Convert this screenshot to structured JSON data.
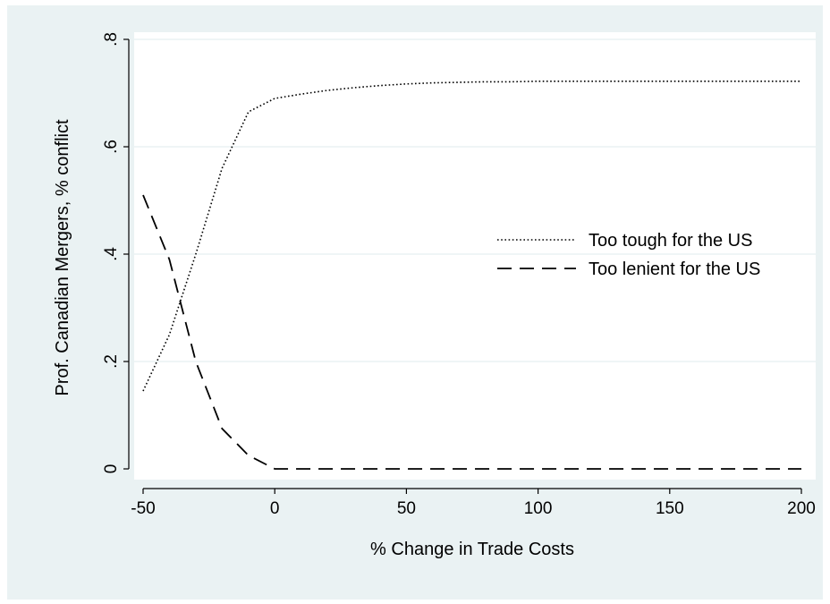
{
  "chart_data": {
    "type": "line",
    "xlabel": "% Change in Trade Costs",
    "ylabel": "Prof. Canadian Mergers, % conflict",
    "xlim": [
      -50,
      200
    ],
    "ylim": [
      0,
      0.8
    ],
    "x_ticks": [
      -50,
      0,
      50,
      100,
      150,
      200
    ],
    "x_tick_labels": [
      "-50",
      "0",
      "50",
      "100",
      "150",
      "200"
    ],
    "y_ticks": [
      0,
      0.2,
      0.4,
      0.6,
      0.8
    ],
    "y_tick_labels": [
      "0",
      ".2",
      ".4",
      ".6",
      ".8"
    ],
    "grid": true,
    "legend_position": "center-right",
    "x": [
      -50,
      -40,
      -30,
      -20,
      -10,
      0,
      10,
      20,
      30,
      40,
      50,
      60,
      70,
      80,
      90,
      100,
      110,
      120,
      130,
      140,
      150,
      160,
      170,
      180,
      190,
      200
    ],
    "series": [
      {
        "name": "Too tough for the US",
        "style": "dotted",
        "values": [
          0.145,
          0.25,
          0.4,
          0.56,
          0.665,
          0.69,
          0.698,
          0.705,
          0.71,
          0.714,
          0.717,
          0.719,
          0.72,
          0.721,
          0.721,
          0.722,
          0.722,
          0.722,
          0.722,
          0.722,
          0.722,
          0.722,
          0.722,
          0.722,
          0.722,
          0.722
        ]
      },
      {
        "name": "Too lenient for the US",
        "style": "dashed",
        "values": [
          0.51,
          0.39,
          0.2,
          0.075,
          0.025,
          0.0,
          0.0,
          0.0,
          0.0,
          0.0,
          0.0,
          0.0,
          0.0,
          0.0,
          0.0,
          0.0,
          0.0,
          0.0,
          0.0,
          0.0,
          0.0,
          0.0,
          0.0,
          0.0,
          0.0,
          0.0
        ]
      }
    ],
    "colors": {
      "background": "#eaf2f3",
      "plot_background": "#ffffff",
      "grid": "#eaf2f3",
      "line": "#000000"
    }
  }
}
